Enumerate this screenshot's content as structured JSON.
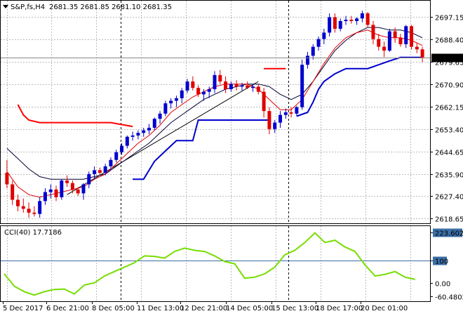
{
  "header": {
    "symbol_tf": "S&P,fs,H4",
    "ohlc": "2681.35 2681.85 2681.10 2681.35"
  },
  "indicator_label": "CCI(40) 17.7186",
  "colors": {
    "bull": "#0000cc",
    "bear": "#e00000",
    "ma_fast": "#e00000",
    "ma_slow": "#000033",
    "stop_line_red": "#ff0000",
    "stop_line_blue": "#0000cc",
    "cci_line": "#77dd00",
    "cci_level": "#3a6ea5",
    "grid": "#bbbbbb",
    "price_marker_bg": "#000000",
    "price_marker_fg": "#ffffff"
  },
  "chart_data": [
    {
      "type": "candlestick",
      "price_axis_ticks": [
        "2697.15",
        "2688.40",
        "2679.65",
        "2670.90",
        "2662.15",
        "2653.40",
        "2644.65",
        "2635.90",
        "2627.40",
        "2618.65"
      ],
      "current_price": "2681.35",
      "time_axis_labels": [
        "5 Dec 2017",
        "6 Dec 21:00",
        "8 Dec 05:00",
        "11 Dec 13:00",
        "12 Dec 21:00",
        "14 Dec 05:00",
        "15 Dec 13:00",
        "18 Dec 17:00",
        "20 Dec 01:00"
      ],
      "ylim": [
        2617.4,
        2701.5
      ],
      "candles": [
        [
          2636.5,
          2641.5,
          2630.5,
          2632.0
        ],
        [
          2632.0,
          2633.5,
          2624.0,
          2626.0
        ],
        [
          2626.0,
          2628.0,
          2621.5,
          2623.5
        ],
        [
          2623.5,
          2626.5,
          2621.0,
          2622.5
        ],
        [
          2622.5,
          2625.0,
          2619.0,
          2621.0
        ],
        [
          2621.0,
          2623.5,
          2619.5,
          2620.5
        ],
        [
          2620.5,
          2627.0,
          2619.0,
          2625.5
        ],
        [
          2625.5,
          2630.5,
          2624.0,
          2629.0
        ],
        [
          2629.0,
          2632.0,
          2626.5,
          2630.0
        ],
        [
          2630.0,
          2631.5,
          2625.5,
          2627.0
        ],
        [
          2627.0,
          2634.0,
          2626.0,
          2633.5
        ],
        [
          2633.5,
          2635.5,
          2631.0,
          2632.5
        ],
        [
          2632.5,
          2633.5,
          2628.5,
          2630.0
        ],
        [
          2630.0,
          2631.0,
          2627.5,
          2628.5
        ],
        [
          2628.5,
          2632.5,
          2626.0,
          2632.0
        ],
        [
          2632.0,
          2637.0,
          2630.5,
          2636.0
        ],
        [
          2636.0,
          2639.0,
          2634.0,
          2637.5
        ],
        [
          2637.5,
          2638.5,
          2635.5,
          2636.5
        ],
        [
          2636.5,
          2640.0,
          2635.5,
          2639.0
        ],
        [
          2639.0,
          2642.5,
          2637.5,
          2641.5
        ],
        [
          2641.5,
          2645.5,
          2640.5,
          2644.5
        ],
        [
          2644.5,
          2648.0,
          2643.5,
          2647.0
        ],
        [
          2647.0,
          2651.0,
          2646.0,
          2650.5
        ],
        [
          2650.5,
          2652.5,
          2649.0,
          2651.0
        ],
        [
          2651.0,
          2653.0,
          2649.5,
          2652.0
        ],
        [
          2652.0,
          2654.0,
          2650.5,
          2653.0
        ],
        [
          2653.0,
          2655.5,
          2651.5,
          2654.0
        ],
        [
          2654.0,
          2658.0,
          2653.0,
          2657.5
        ],
        [
          2657.5,
          2660.5,
          2655.5,
          2659.5
        ],
        [
          2659.5,
          2664.5,
          2658.5,
          2663.5
        ],
        [
          2663.5,
          2665.5,
          2661.5,
          2664.5
        ],
        [
          2664.5,
          2666.5,
          2662.0,
          2665.5
        ],
        [
          2665.5,
          2669.5,
          2663.5,
          2668.5
        ],
        [
          2668.5,
          2673.0,
          2667.5,
          2672.0
        ],
        [
          2672.0,
          2674.0,
          2668.5,
          2669.5
        ],
        [
          2669.5,
          2670.5,
          2666.0,
          2667.0
        ],
        [
          2667.0,
          2669.0,
          2664.5,
          2668.0
        ],
        [
          2668.0,
          2670.0,
          2665.5,
          2669.0
        ],
        [
          2669.0,
          2676.0,
          2667.5,
          2674.5
        ],
        [
          2674.5,
          2676.5,
          2671.0,
          2672.0
        ],
        [
          2672.0,
          2674.0,
          2667.5,
          2669.0
        ],
        [
          2669.0,
          2672.0,
          2668.0,
          2671.0
        ],
        [
          2671.0,
          2672.5,
          2668.5,
          2670.0
        ],
        [
          2670.0,
          2671.5,
          2668.5,
          2670.5
        ],
        [
          2670.5,
          2672.0,
          2669.0,
          2669.5
        ],
        [
          2669.5,
          2671.0,
          2668.0,
          2670.0
        ],
        [
          2670.0,
          2671.0,
          2667.0,
          2668.0
        ],
        [
          2668.0,
          2669.5,
          2658.0,
          2660.5
        ],
        [
          2660.5,
          2662.0,
          2651.5,
          2653.5
        ],
        [
          2653.5,
          2657.0,
          2652.0,
          2656.0
        ],
        [
          2656.0,
          2660.5,
          2654.0,
          2659.0
        ],
        [
          2659.0,
          2661.5,
          2657.5,
          2660.0
        ],
        [
          2660.0,
          2662.0,
          2658.0,
          2659.5
        ],
        [
          2659.5,
          2662.5,
          2658.5,
          2662.0
        ],
        [
          2662.0,
          2680.5,
          2661.0,
          2678.5
        ],
        [
          2678.5,
          2683.5,
          2677.0,
          2682.0
        ],
        [
          2682.0,
          2686.5,
          2680.5,
          2685.5
        ],
        [
          2685.5,
          2689.5,
          2684.0,
          2688.5
        ],
        [
          2688.5,
          2692.5,
          2686.5,
          2691.0
        ],
        [
          2691.0,
          2698.5,
          2689.5,
          2697.0
        ],
        [
          2697.0,
          2698.5,
          2691.0,
          2692.5
        ],
        [
          2692.5,
          2696.5,
          2691.5,
          2695.5
        ],
        [
          2695.5,
          2697.5,
          2694.0,
          2696.0
        ],
        [
          2696.0,
          2697.5,
          2694.5,
          2695.5
        ],
        [
          2695.5,
          2697.0,
          2694.0,
          2696.5
        ],
        [
          2696.5,
          2699.5,
          2695.0,
          2698.5
        ],
        [
          2698.5,
          2699.0,
          2693.0,
          2694.0
        ],
        [
          2694.0,
          2695.5,
          2686.5,
          2688.5
        ],
        [
          2688.5,
          2690.5,
          2684.0,
          2685.5
        ],
        [
          2685.5,
          2687.5,
          2681.5,
          2684.0
        ],
        [
          2684.0,
          2692.5,
          2683.5,
          2691.5
        ],
        [
          2691.5,
          2693.0,
          2687.0,
          2689.0
        ],
        [
          2689.0,
          2690.5,
          2685.5,
          2686.5
        ],
        [
          2686.5,
          2694.0,
          2685.0,
          2693.5
        ],
        [
          2693.5,
          2694.0,
          2684.5,
          2685.5
        ],
        [
          2685.5,
          2687.0,
          2683.0,
          2684.5
        ],
        [
          2684.5,
          2685.5,
          2679.5,
          2681.35
        ]
      ],
      "ma_fast": [
        [
          0,
          2637
        ],
        [
          2,
          2631
        ],
        [
          4,
          2628
        ],
        [
          6,
          2627
        ],
        [
          8,
          2628
        ],
        [
          10,
          2629
        ],
        [
          12,
          2630
        ],
        [
          14,
          2631
        ],
        [
          16,
          2634
        ],
        [
          18,
          2636
        ],
        [
          20,
          2640
        ],
        [
          22,
          2644
        ],
        [
          24,
          2648
        ],
        [
          26,
          2651
        ],
        [
          28,
          2655
        ],
        [
          30,
          2660
        ],
        [
          32,
          2663
        ],
        [
          34,
          2666
        ],
        [
          36,
          2668
        ],
        [
          38,
          2670
        ],
        [
          40,
          2671
        ],
        [
          42,
          2671
        ],
        [
          44,
          2671
        ],
        [
          46,
          2669
        ],
        [
          48,
          2665
        ],
        [
          50,
          2661
        ],
        [
          52,
          2661
        ],
        [
          54,
          2665
        ],
        [
          56,
          2672
        ],
        [
          58,
          2679
        ],
        [
          60,
          2685
        ],
        [
          62,
          2689
        ],
        [
          64,
          2691
        ],
        [
          66,
          2692
        ],
        [
          68,
          2690
        ],
        [
          70,
          2689
        ],
        [
          72,
          2689
        ],
        [
          74,
          2688
        ],
        [
          76,
          2686
        ]
      ],
      "ma_slow": [
        [
          0,
          2646
        ],
        [
          2,
          2642
        ],
        [
          4,
          2638
        ],
        [
          6,
          2635
        ],
        [
          8,
          2634
        ],
        [
          10,
          2634
        ],
        [
          12,
          2634
        ],
        [
          14,
          2634
        ],
        [
          16,
          2635
        ],
        [
          18,
          2636
        ],
        [
          20,
          2639
        ],
        [
          22,
          2642
        ],
        [
          24,
          2645
        ],
        [
          26,
          2648
        ],
        [
          28,
          2652
        ],
        [
          30,
          2656
        ],
        [
          32,
          2659
        ],
        [
          34,
          2662
        ],
        [
          36,
          2665
        ],
        [
          38,
          2667
        ],
        [
          40,
          2669
        ],
        [
          42,
          2670
        ],
        [
          44,
          2671
        ],
        [
          46,
          2671
        ],
        [
          48,
          2670
        ],
        [
          50,
          2667
        ],
        [
          52,
          2665
        ],
        [
          54,
          2667
        ],
        [
          56,
          2672
        ],
        [
          58,
          2678
        ],
        [
          60,
          2684
        ],
        [
          62,
          2688
        ],
        [
          64,
          2691
        ],
        [
          66,
          2693
        ],
        [
          68,
          2693
        ],
        [
          70,
          2692
        ],
        [
          72,
          2692
        ],
        [
          74,
          2691
        ],
        [
          76,
          2689
        ]
      ],
      "trend_line": [
        [
          11,
          2628
        ],
        [
          46,
          2672
        ]
      ],
      "stop_red": [
        [
          [
            2,
            2663
          ],
          [
            3,
            2659
          ],
          [
            4,
            2657
          ],
          [
            6,
            2656
          ],
          [
            8,
            2656
          ],
          [
            10,
            2656
          ],
          [
            13,
            2656
          ],
          [
            16,
            2656
          ],
          [
            19,
            2656
          ],
          [
            23,
            2654.5
          ]
        ],
        [
          [
            47,
            2677
          ],
          [
            51,
            2677
          ]
        ]
      ],
      "stop_blue": [
        [
          [
            23,
            2634
          ],
          [
            25,
            2634
          ],
          [
            27,
            2641
          ],
          [
            29,
            2645
          ],
          [
            31,
            2649
          ],
          [
            34,
            2649
          ],
          [
            35,
            2657
          ],
          [
            38,
            2657
          ],
          [
            42,
            2657
          ],
          [
            45,
            2657
          ],
          [
            48,
            2657
          ]
        ],
        [
          [
            53,
            2658.5
          ],
          [
            55,
            2660
          ],
          [
            56,
            2664
          ],
          [
            57,
            2669
          ],
          [
            58,
            2672
          ],
          [
            60,
            2675
          ],
          [
            62,
            2677
          ],
          [
            66,
            2677
          ],
          [
            70,
            2680
          ],
          [
            72,
            2681.35
          ],
          [
            76,
            2681.35
          ]
        ]
      ]
    },
    {
      "type": "line",
      "name": "CCI(40) 17.7186",
      "ticks": [
        "223.6028",
        "100",
        "0.00",
        "-60.4802"
      ],
      "ylim": [
        -70,
        228
      ],
      "level_line": 100,
      "values": [
        [
          0,
          40
        ],
        [
          2,
          -15
        ],
        [
          4,
          -40
        ],
        [
          6,
          -55
        ],
        [
          8,
          -40
        ],
        [
          10,
          -30
        ],
        [
          12,
          -28
        ],
        [
          14,
          -50
        ],
        [
          16,
          -10
        ],
        [
          18,
          0
        ],
        [
          20,
          30
        ],
        [
          22,
          50
        ],
        [
          24,
          70
        ],
        [
          26,
          90
        ],
        [
          28,
          120
        ],
        [
          30,
          118
        ],
        [
          32,
          110
        ],
        [
          34,
          140
        ],
        [
          36,
          155
        ],
        [
          38,
          145
        ],
        [
          40,
          140
        ],
        [
          42,
          120
        ],
        [
          44,
          95
        ],
        [
          46,
          85
        ],
        [
          48,
          20
        ],
        [
          50,
          25
        ],
        [
          52,
          40
        ],
        [
          54,
          70
        ],
        [
          56,
          125
        ],
        [
          58,
          145
        ],
        [
          60,
          180
        ],
        [
          62,
          223
        ],
        [
          64,
          180
        ],
        [
          66,
          190
        ],
        [
          68,
          160
        ],
        [
          70,
          140
        ],
        [
          72,
          80
        ],
        [
          74,
          30
        ],
        [
          76,
          38
        ],
        [
          78,
          50
        ],
        [
          80,
          25
        ],
        [
          82,
          15
        ]
      ]
    }
  ]
}
